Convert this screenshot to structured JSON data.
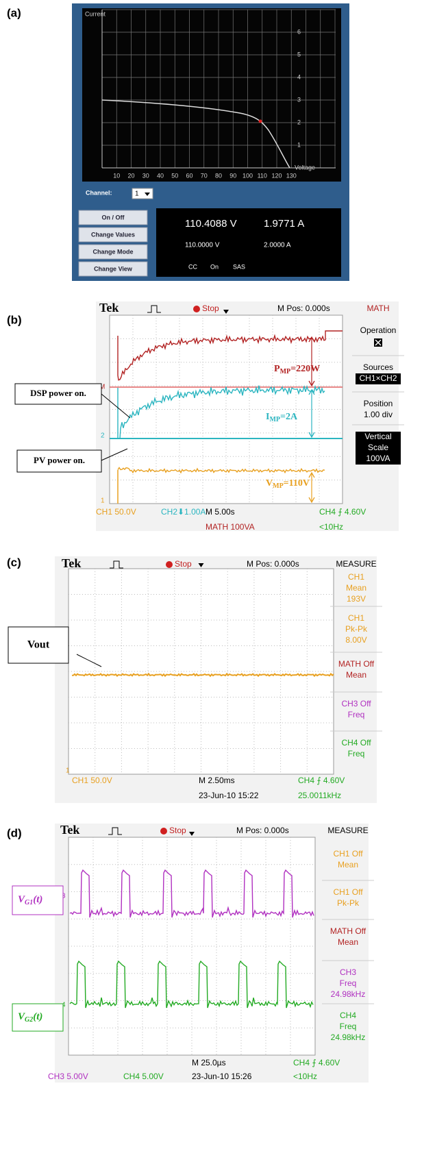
{
  "panels": [
    {
      "label": "(a)",
      "y_axis": "Current",
      "x_axis": "Voltage",
      "yticks": [
        "1",
        "2",
        "3",
        "4",
        "5",
        "6"
      ],
      "xticks": [
        "10",
        "20",
        "30",
        "40",
        "50",
        "60",
        "70",
        "80",
        "90",
        "100",
        "110",
        "120",
        "130"
      ],
      "channel_label": "Channel:",
      "channel_value": "1",
      "buttons": [
        "On / Off",
        "Change Values",
        "Change Mode",
        "Change View"
      ],
      "readout": [
        [
          "110.4088 V",
          "1.9771 A"
        ],
        [
          "110.0000 V",
          "2.0000 A"
        ],
        [
          "CC",
          "On",
          "SAS"
        ]
      ]
    },
    {
      "label": "(b)",
      "header": [
        "Tek",
        "Stop",
        "M Pos: 0.000s",
        "MATH"
      ],
      "menu": [
        [
          "Operation"
        ],
        [
          "Sources",
          "CH1×CH2"
        ],
        [
          "Position",
          "1.00 div"
        ],
        [
          "Vertical",
          "Scale",
          "100VA"
        ]
      ],
      "footer": [
        "CH1  50.0V",
        "CH2⬇1.00A",
        "M 5.00s",
        "CH4 ⨍ 4.60V",
        "MATH 100VA",
        "<10Hz"
      ],
      "markers": [
        "M",
        "2",
        "1"
      ],
      "annotations": [
        {
          "symbol": "P",
          "sub": "MP",
          "rest": "=220W"
        },
        {
          "symbol": "I",
          "sub": "MP",
          "rest": "=2A"
        },
        {
          "symbol": "V",
          "sub": "MP",
          "rest": "=110V"
        }
      ],
      "callouts": [
        "DSP power on.",
        "PV power on."
      ]
    },
    {
      "label": "(c)",
      "header": [
        "Tek",
        "Stop",
        "M Pos: 0.000s",
        "MEASURE"
      ],
      "menu": [
        [
          "CH1",
          "Mean",
          "193V"
        ],
        [
          "CH1",
          "Pk-Pk",
          "8.00V"
        ],
        [
          "MATH Off",
          "Mean"
        ],
        [
          "CH3 Off",
          "Freq"
        ],
        [
          "CH4 Off",
          "Freq"
        ]
      ],
      "footer": [
        "CH1  50.0V",
        "M 2.50ms",
        "CH4 ⨍ 4.60V",
        "23-Jun-10 15:22",
        "25.0011kHz"
      ],
      "markers": [
        "1"
      ],
      "callouts": [
        "Vout"
      ]
    },
    {
      "label": "(d)",
      "header": [
        "Tek",
        "Stop",
        "M Pos: 0.000s",
        "MEASURE"
      ],
      "menu": [
        [
          "CH1 Off",
          "Mean"
        ],
        [
          "CH1 Off",
          "Pk-Pk"
        ],
        [
          "MATH Off",
          "Mean"
        ],
        [
          "CH3",
          "Freq",
          "24.98kHz"
        ],
        [
          "CH4",
          "Freq",
          "24.98kHz"
        ]
      ],
      "footer": [
        "M 25.0µs",
        "CH4 ⨍ 4.60V",
        "CH3  5.00V",
        "CH4  5.00V",
        "23-Jun-10 15:26",
        "<10Hz"
      ],
      "markers": [
        "3",
        "4"
      ],
      "callouts": [
        {
          "symbol": "V",
          "sub": "G1",
          "rest": "(t)"
        },
        {
          "symbol": "V",
          "sub": "G2",
          "rest": "(t)"
        }
      ]
    }
  ]
}
